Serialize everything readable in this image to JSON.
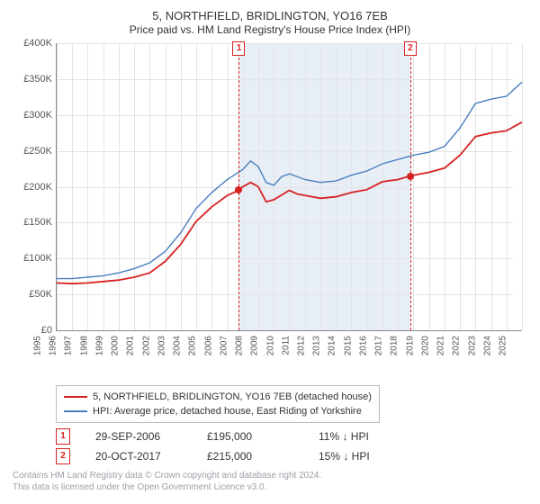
{
  "title": "5, NORTHFIELD, BRIDLINGTON, YO16 7EB",
  "subtitle": "Price paid vs. HM Land Registry's House Price Index (HPI)",
  "colors": {
    "red": "#d62222",
    "blue": "#4a7fbf",
    "shaded_bg": "#e8eef6",
    "grid": "#e4e4e4",
    "axis": "#888888",
    "footer": "#9aa0a6"
  },
  "chart": {
    "ylim": [
      0,
      400000
    ],
    "ytick_step": 50000,
    "yticks": [
      "£0",
      "£50K",
      "£100K",
      "£150K",
      "£200K",
      "£250K",
      "£300K",
      "£350K",
      "£400K"
    ],
    "xlim": [
      1995,
      2025
    ],
    "xticks": [
      1995,
      1996,
      1997,
      1998,
      1999,
      2000,
      2001,
      2002,
      2003,
      2004,
      2005,
      2006,
      2007,
      2008,
      2009,
      2010,
      2011,
      2012,
      2013,
      2014,
      2015,
      2016,
      2017,
      2018,
      2019,
      2020,
      2021,
      2022,
      2023,
      2024,
      2025
    ],
    "shaded_range": [
      2006.75,
      2017.8
    ],
    "series": {
      "red": {
        "label": "5, NORTHFIELD, BRIDLINGTON, YO16 7EB (detached house)",
        "color": "#d62222",
        "points": [
          [
            1995,
            66000
          ],
          [
            1996,
            65000
          ],
          [
            1997,
            66000
          ],
          [
            1998,
            68000
          ],
          [
            1999,
            70000
          ],
          [
            2000,
            74000
          ],
          [
            2001,
            80000
          ],
          [
            2002,
            96000
          ],
          [
            2003,
            120000
          ],
          [
            2004,
            152000
          ],
          [
            2005,
            172000
          ],
          [
            2006,
            188000
          ],
          [
            2006.75,
            195000
          ],
          [
            2007,
            200000
          ],
          [
            2007.5,
            206000
          ],
          [
            2008,
            200000
          ],
          [
            2008.5,
            179000
          ],
          [
            2009,
            182000
          ],
          [
            2010,
            195000
          ],
          [
            2010.5,
            190000
          ],
          [
            2011,
            188000
          ],
          [
            2012,
            184000
          ],
          [
            2013,
            186000
          ],
          [
            2014,
            192000
          ],
          [
            2015,
            196000
          ],
          [
            2016,
            207000
          ],
          [
            2017,
            210000
          ],
          [
            2017.8,
            215000
          ],
          [
            2018,
            216000
          ],
          [
            2019,
            220000
          ],
          [
            2020,
            226000
          ],
          [
            2021,
            244000
          ],
          [
            2022,
            270000
          ],
          [
            2023,
            275000
          ],
          [
            2024,
            278000
          ],
          [
            2025,
            290000
          ]
        ]
      },
      "blue": {
        "label": "HPI: Average price, detached house, East Riding of Yorkshire",
        "color": "#4a7fbf",
        "points": [
          [
            1995,
            72000
          ],
          [
            1996,
            72000
          ],
          [
            1997,
            74000
          ],
          [
            1998,
            76000
          ],
          [
            1999,
            80000
          ],
          [
            2000,
            86000
          ],
          [
            2001,
            94000
          ],
          [
            2002,
            110000
          ],
          [
            2003,
            136000
          ],
          [
            2004,
            170000
          ],
          [
            2005,
            192000
          ],
          [
            2006,
            210000
          ],
          [
            2007,
            224000
          ],
          [
            2007.5,
            236000
          ],
          [
            2008,
            228000
          ],
          [
            2008.5,
            206000
          ],
          [
            2009,
            202000
          ],
          [
            2009.5,
            214000
          ],
          [
            2010,
            218000
          ],
          [
            2011,
            210000
          ],
          [
            2012,
            206000
          ],
          [
            2013,
            208000
          ],
          [
            2014,
            216000
          ],
          [
            2015,
            222000
          ],
          [
            2016,
            232000
          ],
          [
            2017,
            238000
          ],
          [
            2018,
            244000
          ],
          [
            2019,
            248000
          ],
          [
            2020,
            256000
          ],
          [
            2021,
            282000
          ],
          [
            2022,
            316000
          ],
          [
            2023,
            322000
          ],
          [
            2024,
            326000
          ],
          [
            2025,
            346000
          ]
        ]
      }
    },
    "markers": [
      {
        "n": "1",
        "x": 2006.75,
        "y": 195000,
        "color": "#d62222"
      },
      {
        "n": "2",
        "x": 2017.8,
        "y": 215000,
        "color": "#d62222"
      }
    ]
  },
  "legend": [
    {
      "color": "#d62222",
      "label": "5, NORTHFIELD, BRIDLINGTON, YO16 7EB (detached house)"
    },
    {
      "color": "#4a7fbf",
      "label": "HPI: Average price, detached house, East Riding of Yorkshire"
    }
  ],
  "sales": [
    {
      "n": "1",
      "color": "#d62222",
      "date": "29-SEP-2006",
      "price": "£195,000",
      "delta": "11% ↓ HPI"
    },
    {
      "n": "2",
      "color": "#d62222",
      "date": "20-OCT-2017",
      "price": "£215,000",
      "delta": "15% ↓ HPI"
    }
  ],
  "footer": [
    "Contains HM Land Registry data © Crown copyright and database right 2024.",
    "This data is licensed under the Open Government Licence v3.0."
  ]
}
